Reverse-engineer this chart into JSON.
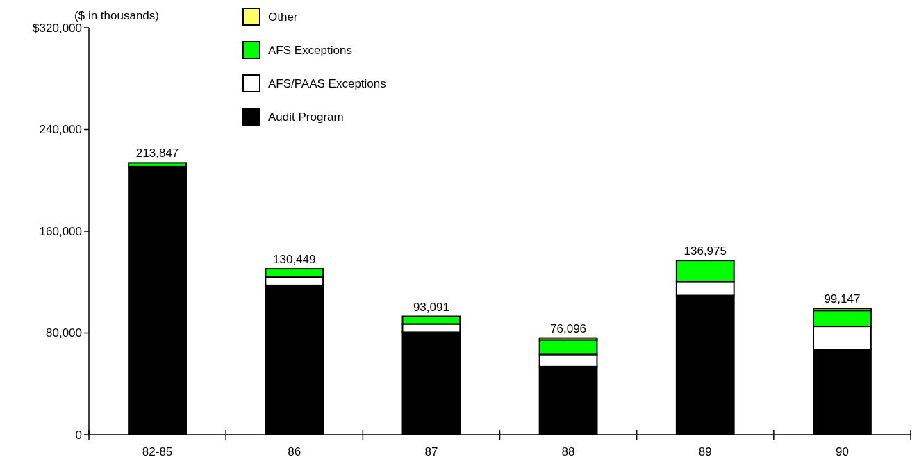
{
  "chart_data": {
    "type": "bar",
    "stacked": true,
    "categories": [
      "82-85",
      "86",
      "87",
      "88",
      "89",
      "90"
    ],
    "series": [
      {
        "name": "Audit Program",
        "color": "#000000",
        "values": [
          209847,
          117449,
          80591,
          53596,
          109475,
          67147
        ]
      },
      {
        "name": "AFS/PAAS Exceptions",
        "color": "#ffffff",
        "values": [
          1000,
          6500,
          6500,
          9500,
          11000,
          18000
        ]
      },
      {
        "name": "AFS Exceptions",
        "color": "#00ff00",
        "values": [
          3000,
          6500,
          6000,
          11500,
          16500,
          12500
        ]
      },
      {
        "name": "Other",
        "color": "#ffff66",
        "values": [
          0,
          0,
          0,
          1500,
          0,
          1500
        ]
      }
    ],
    "totals": [
      "213,847",
      "130,449",
      "93,091",
      "76,096",
      "136,975",
      "99,147"
    ],
    "ylim": [
      0,
      320000
    ],
    "yticks": [
      0,
      {
        "value": 80000,
        "label": "80,000"
      },
      {
        "value": 160000,
        "label": "160,000"
      },
      {
        "value": 240000,
        "label": "240,000"
      },
      {
        "value": 320000,
        "label": "$320,000"
      }
    ],
    "annotations": [
      "($ in thousands)"
    ],
    "legend": "top left",
    "grid": false
  }
}
